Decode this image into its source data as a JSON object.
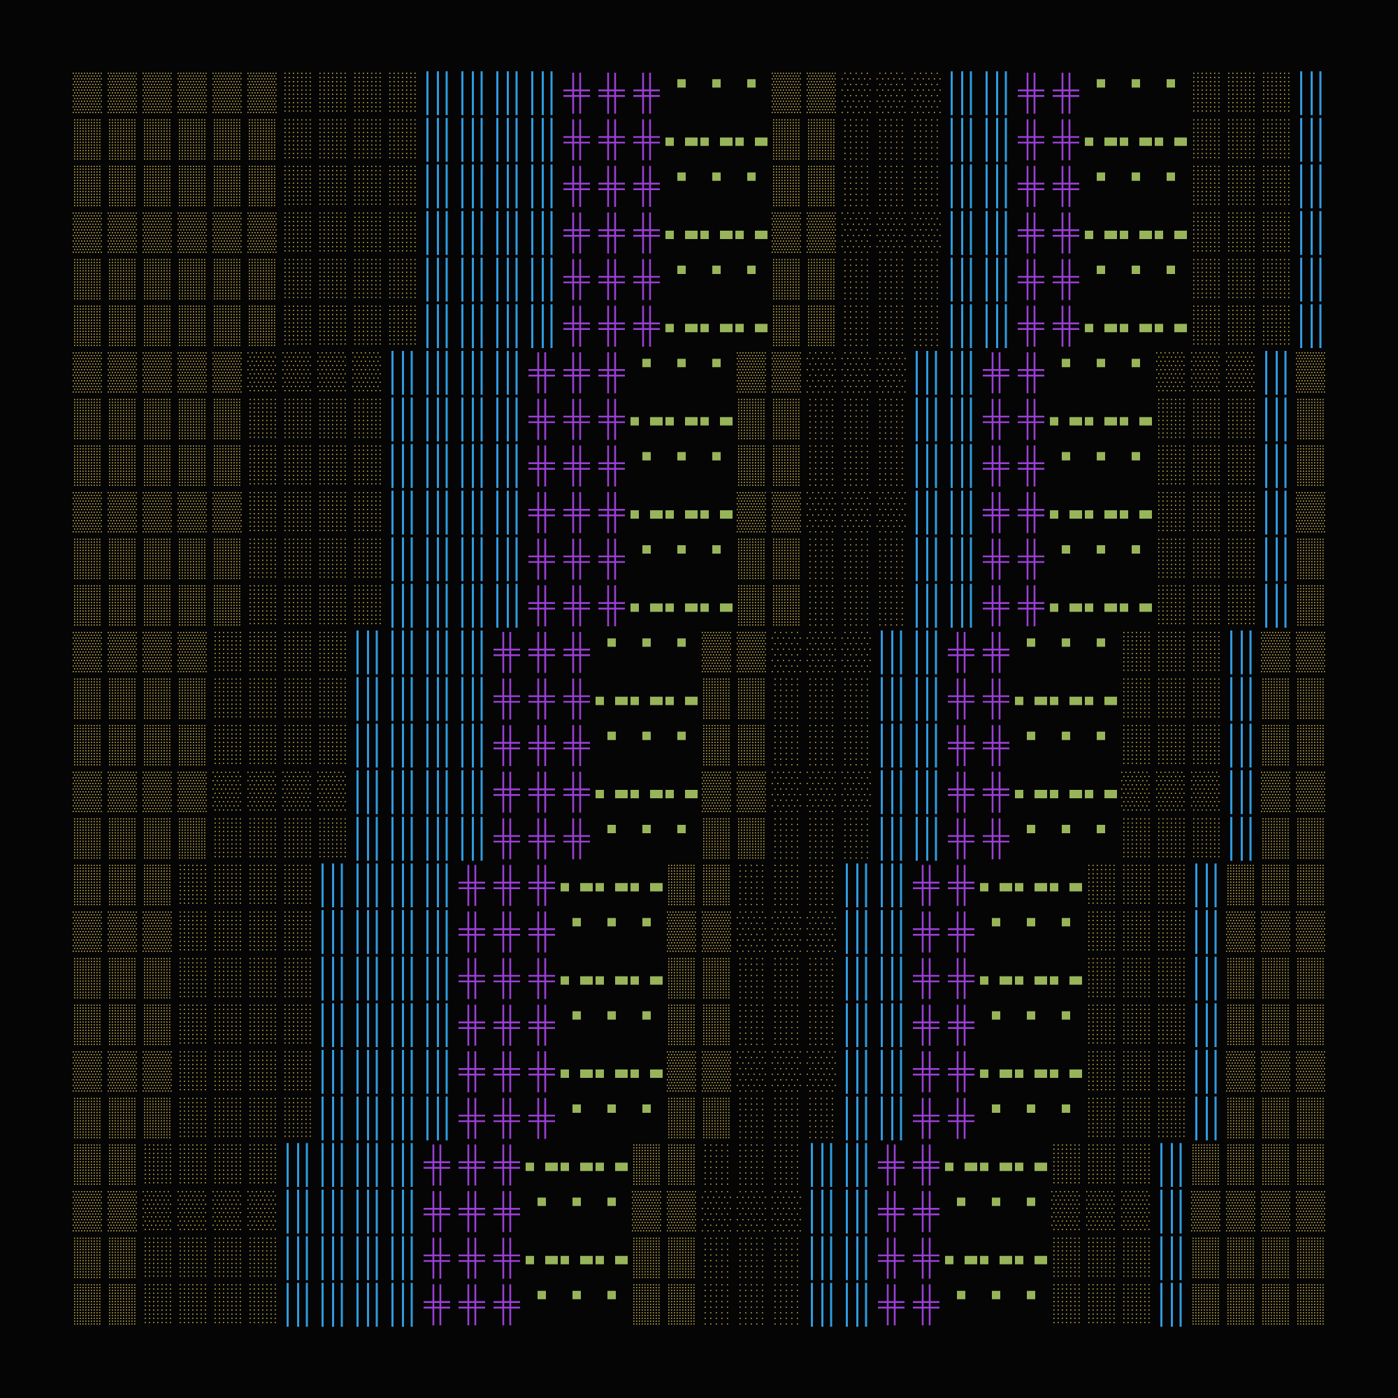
{
  "canvas": {
    "background": "#050505"
  },
  "palette": {
    "shade": "#c9b24c",
    "bars": "#2f9be0",
    "cross": "#9b3fd6",
    "diamond": "#98b45a"
  },
  "glyph_kinds": [
    "shade-dense",
    "shade-medium",
    "shade-light",
    "bars-glyph",
    "cross-glyph",
    "diamond-glyph"
  ],
  "pattern": {
    "columns": 36,
    "rows": 27,
    "bands": [
      {
        "kind": "shade-dense",
        "width": 6
      },
      {
        "kind": "shade-medium",
        "width": 4
      },
      {
        "kind": "bars-glyph",
        "width": 4
      },
      {
        "kind": "cross-glyph",
        "width": 3
      },
      {
        "kind": "diamond-glyph",
        "width": 3
      },
      {
        "kind": "shade-dense",
        "width": 2
      },
      {
        "kind": "shade-light",
        "width": 3
      },
      {
        "kind": "bars-glyph",
        "width": 2
      },
      {
        "kind": "cross-glyph",
        "width": 2
      },
      {
        "kind": "diamond-glyph",
        "width": 3
      },
      {
        "kind": "shade-medium",
        "width": 3
      },
      {
        "kind": "bars-glyph",
        "width": 1
      }
    ]
  }
}
